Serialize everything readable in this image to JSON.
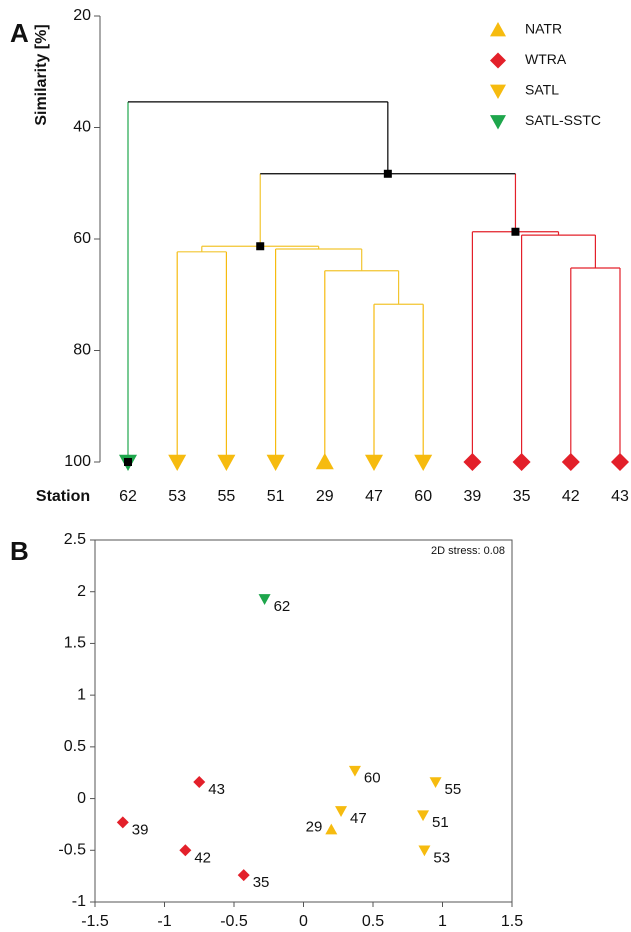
{
  "chart_data": [
    {
      "type": "dendrogram",
      "panel": "A",
      "y_title": "Similarity [%]",
      "x_title": "Station",
      "ylim": [
        20,
        100
      ],
      "yticks": [
        20,
        40,
        60,
        80,
        100
      ],
      "y_inverted": true,
      "groups": [
        {
          "name": "NATR",
          "color": "#f6bb0f",
          "marker": "triangle-up"
        },
        {
          "name": "WTRA",
          "color": "#e3202a",
          "marker": "diamond"
        },
        {
          "name": "SATL",
          "color": "#f6bb0f",
          "marker": "triangle-down"
        },
        {
          "name": "SATL-SSTC",
          "color": "#1ea64c",
          "marker": "triangle-down"
        }
      ],
      "leaves": [
        {
          "label": "62",
          "group": 3
        },
        {
          "label": "53",
          "group": 2
        },
        {
          "label": "55",
          "group": 2
        },
        {
          "label": "51",
          "group": 2
        },
        {
          "label": "29",
          "group": 0
        },
        {
          "label": "47",
          "group": 2
        },
        {
          "label": "60",
          "group": 2
        },
        {
          "label": "39",
          "group": 1
        },
        {
          "label": "35",
          "group": 1
        },
        {
          "label": "42",
          "group": 1
        },
        {
          "label": "43",
          "group": 1
        }
      ],
      "tree": {
        "height": 35.4,
        "color": "#000000",
        "children": [
          0,
          {
            "height": 48.3,
            "color": "#000000",
            "children": [
              {
                "height": 61.3,
                "color": "#f2c530",
                "children": [
                  {
                    "height": 62.3,
                    "color": "#f2c530",
                    "children": [
                      1,
                      2
                    ]
                  },
                  {
                    "height": 61.8,
                    "color": "#f2c530",
                    "children": [
                      3,
                      {
                        "height": 65.7,
                        "color": "#f2c530",
                        "children": [
                          4,
                          {
                            "height": 71.7,
                            "color": "#f2c530",
                            "children": [
                              5,
                              6
                            ]
                          }
                        ]
                      }
                    ]
                  }
                ]
              },
              {
                "height": 58.7,
                "color": "#e3202a",
                "children": [
                  7,
                  {
                    "height": 59.3,
                    "color": "#e3202a",
                    "children": [
                      8,
                      {
                        "height": 65.2,
                        "color": "#e3202a",
                        "children": [
                          9,
                          10
                        ]
                      }
                    ]
                  }
                ]
              }
            ]
          }
        ]
      }
    },
    {
      "type": "scatter",
      "panel": "B",
      "annotation": "2D stress: 0.08",
      "xlim": [
        -1.5,
        1.5
      ],
      "xticks": [
        -1.5,
        -1,
        -0.5,
        0,
        0.5,
        1,
        1.5
      ],
      "ylim": [
        -1,
        2.5
      ],
      "yticks": [
        -1,
        -0.5,
        0,
        0.5,
        1,
        1.5,
        2,
        2.5
      ],
      "points": {
        "labels": [
          "62",
          "43",
          "39",
          "42",
          "35",
          "60",
          "47",
          "29",
          "55",
          "51",
          "53"
        ],
        "x": [
          -0.28,
          -0.75,
          -1.3,
          -0.85,
          -0.43,
          0.37,
          0.27,
          0.2,
          0.95,
          0.86,
          0.87
        ],
        "y": [
          1.93,
          0.16,
          -0.23,
          -0.5,
          -0.74,
          0.27,
          -0.12,
          -0.3,
          0.16,
          -0.16,
          -0.5
        ],
        "groups": [
          3,
          1,
          1,
          1,
          1,
          2,
          2,
          0,
          2,
          2,
          2
        ]
      }
    }
  ]
}
